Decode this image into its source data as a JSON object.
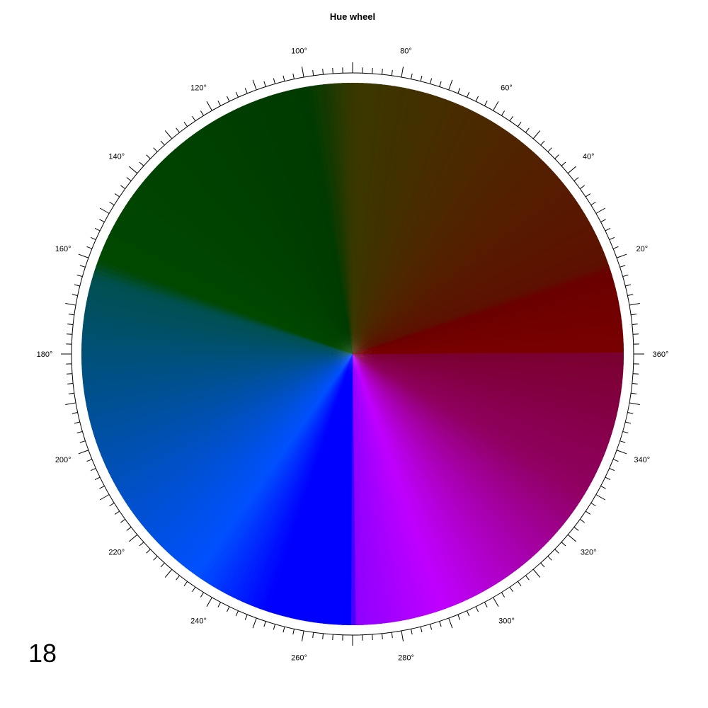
{
  "chart_data": {
    "type": "pie",
    "title": "Hue wheel",
    "angle_unit": "degrees",
    "direction": "counterclockwise",
    "zero_at": "right",
    "tick_labels": [
      "20°",
      "40°",
      "60°",
      "80°",
      "100°",
      "120°",
      "140°",
      "160°",
      "180°",
      "200°",
      "220°",
      "240°",
      "260°",
      "280°",
      "300°",
      "320°",
      "340°",
      "360°"
    ],
    "tick_label_angles": [
      20,
      40,
      60,
      80,
      100,
      120,
      140,
      160,
      180,
      200,
      220,
      240,
      260,
      280,
      300,
      320,
      340,
      360
    ],
    "minor_tick_step": 2,
    "major_tick_step": 10,
    "color_stops": [
      {
        "angle": 0,
        "color": "#7a0000"
      },
      {
        "angle": 18,
        "color": "#6a0000"
      },
      {
        "angle": 20,
        "color": "#5e1000"
      },
      {
        "angle": 60,
        "color": "#4c2800"
      },
      {
        "angle": 90,
        "color": "#3a3800"
      },
      {
        "angle": 100,
        "color": "#003a00"
      },
      {
        "angle": 160,
        "color": "#004800"
      },
      {
        "angle": 164,
        "color": "#005050"
      },
      {
        "angle": 235,
        "color": "#0050ff"
      },
      {
        "angle": 252,
        "color": "#0000ff"
      },
      {
        "angle": 270,
        "color": "#0000ff"
      },
      {
        "angle": 271,
        "color": "#9000ff"
      },
      {
        "angle": 290,
        "color": "#c000ff"
      },
      {
        "angle": 330,
        "color": "#900060"
      },
      {
        "angle": 360,
        "color": "#7a0030"
      }
    ]
  },
  "panel_number": "18"
}
